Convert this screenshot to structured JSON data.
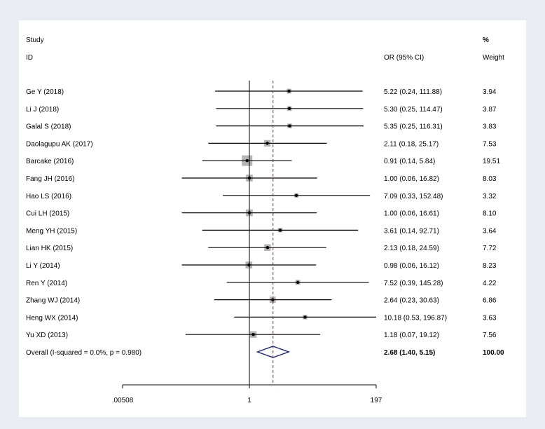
{
  "chart_data": {
    "type": "forest",
    "headers": {
      "study_line1": "Study",
      "study_line2": "ID",
      "effect": "OR (95% CI)",
      "weight_line1": "%",
      "weight_line2": "Weight"
    },
    "studies": [
      {
        "label": "Ge Y (2018)",
        "or": 5.22,
        "lo": 0.24,
        "hi": 111.88,
        "ci_text": "5.22 (0.24, 111.88)",
        "weight_text": "3.94",
        "weight": 3.94
      },
      {
        "label": "Li J (2018)",
        "or": 5.3,
        "lo": 0.25,
        "hi": 114.47,
        "ci_text": "5.30 (0.25, 114.47)",
        "weight_text": "3.87",
        "weight": 3.87
      },
      {
        "label": "Galal S (2018)",
        "or": 5.35,
        "lo": 0.25,
        "hi": 116.31,
        "ci_text": "5.35 (0.25, 116.31)",
        "weight_text": "3.83",
        "weight": 3.83
      },
      {
        "label": "Daolagupu AK (2017)",
        "or": 2.11,
        "lo": 0.18,
        "hi": 25.17,
        "ci_text": "2.11 (0.18, 25.17)",
        "weight_text": "7.53",
        "weight": 7.53
      },
      {
        "label": "Barcake (2016)",
        "or": 0.91,
        "lo": 0.14,
        "hi": 5.84,
        "ci_text": "0.91 (0.14, 5.84)",
        "weight_text": "19.51",
        "weight": 19.51
      },
      {
        "label": "Fang JH (2016)",
        "or": 1.0,
        "lo": 0.06,
        "hi": 16.82,
        "ci_text": "1.00 (0.06, 16.82)",
        "weight_text": "8.03",
        "weight": 8.03
      },
      {
        "label": "Hao LS (2016)",
        "or": 7.09,
        "lo": 0.33,
        "hi": 152.48,
        "ci_text": "7.09 (0.33, 152.48)",
        "weight_text": "3.32",
        "weight": 3.32
      },
      {
        "label": "Cui LH (2015)",
        "or": 1.0,
        "lo": 0.06,
        "hi": 16.61,
        "ci_text": "1.00 (0.06, 16.61)",
        "weight_text": "8.10",
        "weight": 8.1
      },
      {
        "label": "Meng YH (2015)",
        "or": 3.61,
        "lo": 0.14,
        "hi": 92.71,
        "ci_text": "3.61 (0.14, 92.71)",
        "weight_text": "3.64",
        "weight": 3.64
      },
      {
        "label": "Lian HK (2015)",
        "or": 2.13,
        "lo": 0.18,
        "hi": 24.59,
        "ci_text": "2.13 (0.18, 24.59)",
        "weight_text": "7.72",
        "weight": 7.72
      },
      {
        "label": "Li Y (2014)",
        "or": 0.98,
        "lo": 0.06,
        "hi": 16.12,
        "ci_text": "0.98 (0.06, 16.12)",
        "weight_text": "8.23",
        "weight": 8.23
      },
      {
        "label": "Ren Y (2014)",
        "or": 7.52,
        "lo": 0.39,
        "hi": 145.28,
        "ci_text": "7.52 (0.39, 145.28)",
        "weight_text": "4.22",
        "weight": 4.22
      },
      {
        "label": "Zhang WJ (2014)",
        "or": 2.64,
        "lo": 0.23,
        "hi": 30.63,
        "ci_text": "2.64 (0.23, 30.63)",
        "weight_text": "6.86",
        "weight": 6.86
      },
      {
        "label": "Heng WX (2014)",
        "or": 10.18,
        "lo": 0.53,
        "hi": 196.87,
        "ci_text": "10.18 (0.53, 196.87)",
        "weight_text": "3.63",
        "weight": 3.63
      },
      {
        "label": "Yu XD (2013)",
        "or": 1.18,
        "lo": 0.07,
        "hi": 19.12,
        "ci_text": "1.18 (0.07, 19.12)",
        "weight_text": "7.56",
        "weight": 7.56
      }
    ],
    "overall": {
      "label": "Overall  (I-squared = 0.0%, p = 0.980)",
      "or": 2.68,
      "lo": 1.4,
      "hi": 5.15,
      "ci_text": "2.68 (1.40, 5.15)",
      "weight_text": "100.00"
    },
    "x_axis": {
      "scale": "log",
      "range": [
        0.00508,
        197
      ],
      "ticks": [
        {
          "value": 0.00508,
          "label": ".00508"
        },
        {
          "value": 1,
          "label": "1"
        },
        {
          "value": 197,
          "label": "197"
        }
      ],
      "null_value": 1
    },
    "colors": {
      "ci_line": "#000000",
      "box": "#b4b4b4",
      "reference": "#7a2d3a",
      "diamond": "#1a237e",
      "null_line": "#000000"
    }
  }
}
